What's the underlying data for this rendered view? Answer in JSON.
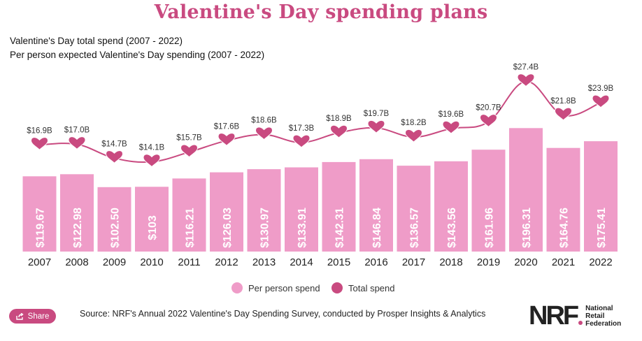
{
  "title": "Valentine's Day spending plans",
  "subtitles": [
    "Valentine's Day total spend (2007 - 2022)",
    "Per person expected Valentine's Day spending (2007 - 2022)"
  ],
  "colors": {
    "bar": "#ef9cc8",
    "line": "#c94a80",
    "title": "#c94a80"
  },
  "chart_data": {
    "type": "bar",
    "categories": [
      "2007",
      "2008",
      "2009",
      "2010",
      "2011",
      "2012",
      "2013",
      "2014",
      "2015",
      "2016",
      "2017",
      "2018",
      "2019",
      "2020",
      "2021",
      "2022"
    ],
    "series": [
      {
        "name": "Per person spend",
        "type": "bar",
        "values": [
          119.67,
          122.98,
          102.5,
          103,
          116.21,
          126.03,
          130.97,
          133.91,
          142.31,
          146.84,
          136.57,
          143.56,
          161.96,
          196.31,
          164.76,
          175.41
        ],
        "labels": [
          "$119.67",
          "$122.98",
          "$102.50",
          "$103",
          "$116.21",
          "$126.03",
          "$130.97",
          "$133.91",
          "$142.31",
          "$146.84",
          "$136.57",
          "$143.56",
          "$161.96",
          "$196.31",
          "$164.76",
          "$175.41"
        ]
      },
      {
        "name": "Total spend",
        "type": "line",
        "marker": "heart",
        "values": [
          16.9,
          17.0,
          14.7,
          14.1,
          15.7,
          17.6,
          18.6,
          17.3,
          18.9,
          19.7,
          18.2,
          19.6,
          20.7,
          27.4,
          21.8,
          23.9
        ],
        "labels": [
          "$16.9B",
          "$17.0B",
          "$14.7B",
          "$14.1B",
          "$15.7B",
          "$17.6B",
          "$18.6B",
          "$17.3B",
          "$18.9B",
          "$19.7B",
          "$18.2B",
          "$19.6B",
          "$20.7B",
          "$27.4B",
          "$21.8B",
          "$23.9B"
        ]
      }
    ],
    "legend_position": "bottom",
    "grid": false
  },
  "legend": {
    "bar_label": "Per person spend",
    "line_label": "Total spend"
  },
  "share_label": "Share",
  "source": "Source: NRF's Annual 2022 Valentine's Day Spending Survey, conducted by Prosper Insights & Analytics",
  "logo": {
    "mark": "NRF",
    "lines": [
      "National",
      "Retail",
      "Federation"
    ]
  }
}
